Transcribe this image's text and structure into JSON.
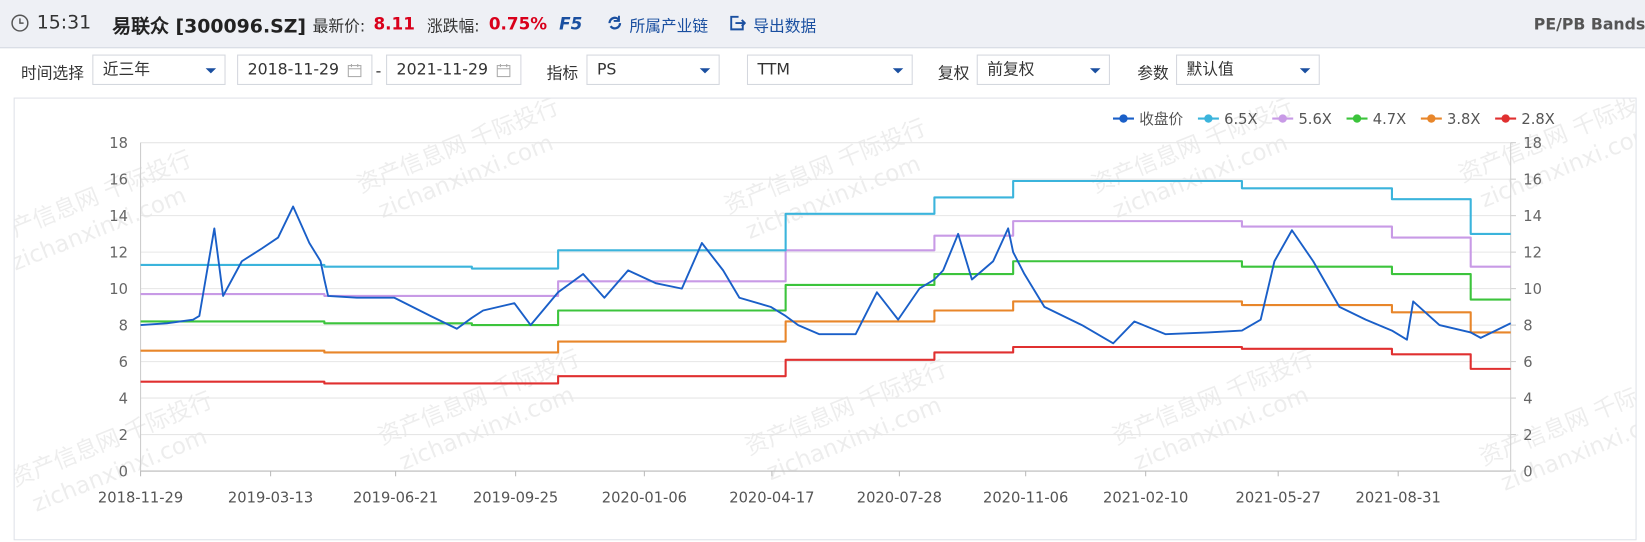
{
  "header": {
    "time": "15:31",
    "stock": "易联众 [300096.SZ]",
    "price_label": "最新价:",
    "price": "8.11",
    "change_label": "涨跌幅:",
    "change": "0.75%",
    "refresh": "F5",
    "industry_chain": "所属产业链",
    "export": "导出数据",
    "tool_title": "PE/PB Bands"
  },
  "controls": {
    "time_label": "时间选择",
    "time_range": "近三年",
    "start_date": "2018-11-29",
    "date_separator": "-",
    "end_date": "2021-11-29",
    "indicator_label": "指标",
    "indicator": "PS",
    "indicator_basis": "TTM",
    "adjust_label": "复权",
    "adjust": "前复权",
    "param_label": "参数",
    "param": "默认值"
  },
  "watermark": {
    "text": "资产信息网 千际投行",
    "url": "zichanxinxi.com"
  },
  "chart_data": {
    "type": "line",
    "x": [
      "2018-11-29",
      "2018-12-20",
      "2019-01-10",
      "2019-01-15",
      "2019-01-27",
      "2019-02-03",
      "2019-02-18",
      "2019-03-06",
      "2019-03-19",
      "2019-03-31",
      "2019-04-13",
      "2019-04-22",
      "2019-04-25",
      "2019-04-28",
      "2019-05-21",
      "2019-06-20",
      "2019-07-19",
      "2019-08-09",
      "2019-08-21",
      "2019-08-30",
      "2019-09-24",
      "2019-10-07",
      "2019-10-29",
      "2019-11-18",
      "2019-12-05",
      "2019-12-24",
      "2020-01-15",
      "2020-02-05",
      "2020-02-21",
      "2020-03-09",
      "2020-03-22",
      "2020-04-16",
      "2020-04-28",
      "2020-05-08",
      "2020-05-25",
      "2020-06-23",
      "2020-07-10",
      "2020-07-27",
      "2020-08-13",
      "2020-08-25",
      "2020-09-01",
      "2020-09-13",
      "2020-09-24",
      "2020-10-11",
      "2020-10-23",
      "2020-10-27",
      "2020-11-05",
      "2020-11-21",
      "2020-12-21",
      "2021-01-15",
      "2021-02-01",
      "2021-02-26",
      "2021-04-01",
      "2021-04-28",
      "2021-05-13",
      "2021-05-24",
      "2021-06-07",
      "2021-06-24",
      "2021-07-15",
      "2021-08-05",
      "2021-08-26",
      "2021-09-07",
      "2021-09-12",
      "2021-10-03",
      "2021-10-28",
      "2021-11-05",
      "2021-11-29"
    ],
    "xlim": [
      "2018-11-29",
      "2021-11-29"
    ],
    "xticks": [
      "2018-11-29",
      "2019-03-13",
      "2019-06-21",
      "2019-09-25",
      "2020-01-06",
      "2020-04-17",
      "2020-07-28",
      "2020-11-06",
      "2021-02-10",
      "2021-05-27",
      "2021-08-31"
    ],
    "ylim": [
      0,
      18
    ],
    "yticks": [
      0,
      2,
      4,
      6,
      8,
      10,
      12,
      14,
      16,
      18
    ],
    "y2lim": [
      0,
      18
    ],
    "y2ticks": [
      0,
      2,
      4,
      6,
      8,
      10,
      12,
      14,
      16,
      18
    ],
    "grid": true,
    "legend": "top-right",
    "series": [
      {
        "name": "收盘价",
        "color": "#1a5fc8",
        "values": [
          8.0,
          8.1,
          8.3,
          8.5,
          13.3,
          9.6,
          11.5,
          12.2,
          12.8,
          14.5,
          12.5,
          11.5,
          10.5,
          9.6,
          9.5,
          9.5,
          8.5,
          7.8,
          8.4,
          8.8,
          9.2,
          8.0,
          9.8,
          10.8,
          9.5,
          11.0,
          10.3,
          10.0,
          12.5,
          11.0,
          9.5,
          9.0,
          8.5,
          8.0,
          7.5,
          7.5,
          9.8,
          8.3,
          10.0,
          10.5,
          11.0,
          13.0,
          10.5,
          11.5,
          13.3,
          12.0,
          10.8,
          9.0,
          8.0,
          7.0,
          8.2,
          7.5,
          7.6,
          7.7,
          8.3,
          11.5,
          13.2,
          11.5,
          9.0,
          8.3,
          7.7,
          7.2,
          9.3,
          8.0,
          7.6,
          7.3,
          8.1
        ]
      },
      {
        "name": "6.5X",
        "color": "#3bb4dc",
        "step": true,
        "values": [
          11.3,
          11.3,
          11.3,
          11.3,
          11.3,
          11.3,
          11.3,
          11.3,
          11.3,
          11.3,
          11.3,
          11.3,
          11.2,
          11.2,
          11.2,
          11.2,
          11.2,
          11.2,
          11.1,
          11.1,
          11.1,
          11.1,
          12.1,
          12.1,
          12.1,
          12.1,
          12.1,
          12.1,
          12.1,
          12.1,
          12.1,
          12.1,
          14.1,
          14.1,
          14.1,
          14.1,
          14.1,
          14.1,
          14.1,
          15.0,
          15.0,
          15.0,
          15.0,
          15.0,
          15.0,
          15.9,
          15.9,
          15.9,
          15.9,
          15.9,
          15.9,
          15.9,
          15.9,
          15.5,
          15.5,
          15.5,
          15.5,
          15.5,
          15.5,
          15.5,
          14.9,
          14.9,
          14.9,
          14.9,
          13.0,
          13.0,
          13.0
        ]
      },
      {
        "name": "5.6X",
        "color": "#c89ae6",
        "step": true,
        "values": [
          9.7,
          9.7,
          9.7,
          9.7,
          9.7,
          9.7,
          9.7,
          9.7,
          9.7,
          9.7,
          9.7,
          9.7,
          9.6,
          9.6,
          9.6,
          9.6,
          9.6,
          9.6,
          9.6,
          9.6,
          9.6,
          9.6,
          10.4,
          10.4,
          10.4,
          10.4,
          10.4,
          10.4,
          10.4,
          10.4,
          10.4,
          10.4,
          12.1,
          12.1,
          12.1,
          12.1,
          12.1,
          12.1,
          12.1,
          12.9,
          12.9,
          12.9,
          12.9,
          12.9,
          12.9,
          13.7,
          13.7,
          13.7,
          13.7,
          13.7,
          13.7,
          13.7,
          13.7,
          13.4,
          13.4,
          13.4,
          13.4,
          13.4,
          13.4,
          13.4,
          12.8,
          12.8,
          12.8,
          12.8,
          11.2,
          11.2,
          11.2
        ]
      },
      {
        "name": "4.7X",
        "color": "#3cc43c",
        "step": true,
        "values": [
          8.2,
          8.2,
          8.2,
          8.2,
          8.2,
          8.2,
          8.2,
          8.2,
          8.2,
          8.2,
          8.2,
          8.2,
          8.1,
          8.1,
          8.1,
          8.1,
          8.1,
          8.1,
          8.0,
          8.0,
          8.0,
          8.0,
          8.8,
          8.8,
          8.8,
          8.8,
          8.8,
          8.8,
          8.8,
          8.8,
          8.8,
          8.8,
          10.2,
          10.2,
          10.2,
          10.2,
          10.2,
          10.2,
          10.2,
          10.8,
          10.8,
          10.8,
          10.8,
          10.8,
          10.8,
          11.5,
          11.5,
          11.5,
          11.5,
          11.5,
          11.5,
          11.5,
          11.5,
          11.2,
          11.2,
          11.2,
          11.2,
          11.2,
          11.2,
          11.2,
          10.8,
          10.8,
          10.8,
          10.8,
          9.4,
          9.4,
          9.4
        ]
      },
      {
        "name": "3.8X",
        "color": "#e8862a",
        "step": true,
        "values": [
          6.6,
          6.6,
          6.6,
          6.6,
          6.6,
          6.6,
          6.6,
          6.6,
          6.6,
          6.6,
          6.6,
          6.6,
          6.5,
          6.5,
          6.5,
          6.5,
          6.5,
          6.5,
          6.5,
          6.5,
          6.5,
          6.5,
          7.1,
          7.1,
          7.1,
          7.1,
          7.1,
          7.1,
          7.1,
          7.1,
          7.1,
          7.1,
          8.2,
          8.2,
          8.2,
          8.2,
          8.2,
          8.2,
          8.2,
          8.8,
          8.8,
          8.8,
          8.8,
          8.8,
          8.8,
          9.3,
          9.3,
          9.3,
          9.3,
          9.3,
          9.3,
          9.3,
          9.3,
          9.1,
          9.1,
          9.1,
          9.1,
          9.1,
          9.1,
          9.1,
          8.7,
          8.7,
          8.7,
          8.7,
          7.6,
          7.6,
          7.6
        ]
      },
      {
        "name": "2.8X",
        "color": "#e03030",
        "step": true,
        "values": [
          4.9,
          4.9,
          4.9,
          4.9,
          4.9,
          4.9,
          4.9,
          4.9,
          4.9,
          4.9,
          4.9,
          4.9,
          4.8,
          4.8,
          4.8,
          4.8,
          4.8,
          4.8,
          4.8,
          4.8,
          4.8,
          4.8,
          5.2,
          5.2,
          5.2,
          5.2,
          5.2,
          5.2,
          5.2,
          5.2,
          5.2,
          5.2,
          6.1,
          6.1,
          6.1,
          6.1,
          6.1,
          6.1,
          6.1,
          6.5,
          6.5,
          6.5,
          6.5,
          6.5,
          6.5,
          6.8,
          6.8,
          6.8,
          6.8,
          6.8,
          6.8,
          6.8,
          6.8,
          6.7,
          6.7,
          6.7,
          6.7,
          6.7,
          6.7,
          6.7,
          6.4,
          6.4,
          6.4,
          6.4,
          5.6,
          5.6,
          5.6
        ]
      }
    ]
  }
}
